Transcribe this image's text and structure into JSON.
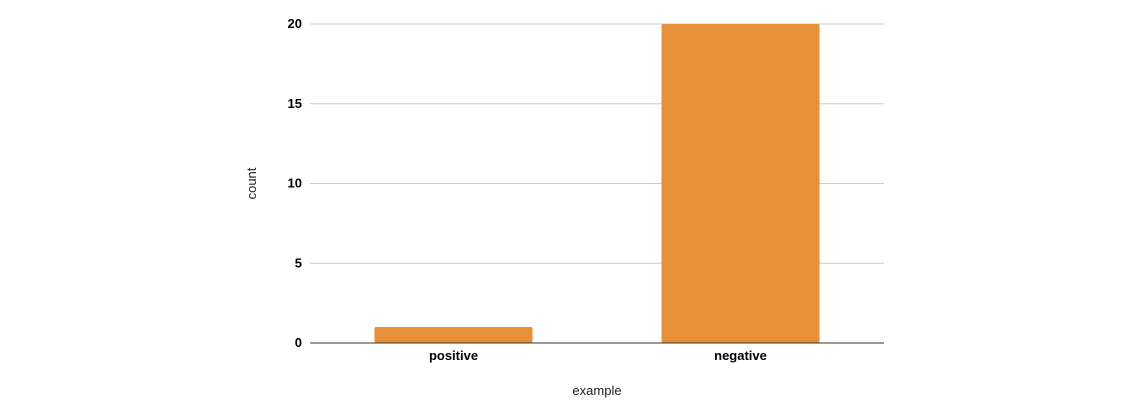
{
  "chart_data": {
    "type": "bar",
    "categories": [
      "positive",
      "negative"
    ],
    "values": [
      1,
      20
    ],
    "title": "",
    "xlabel": "example",
    "ylabel": "count",
    "ylim": [
      0,
      20
    ],
    "yticks": [
      0,
      5,
      10,
      15,
      20
    ],
    "grid": true,
    "legend": "none",
    "bar_color": "#E69138"
  }
}
